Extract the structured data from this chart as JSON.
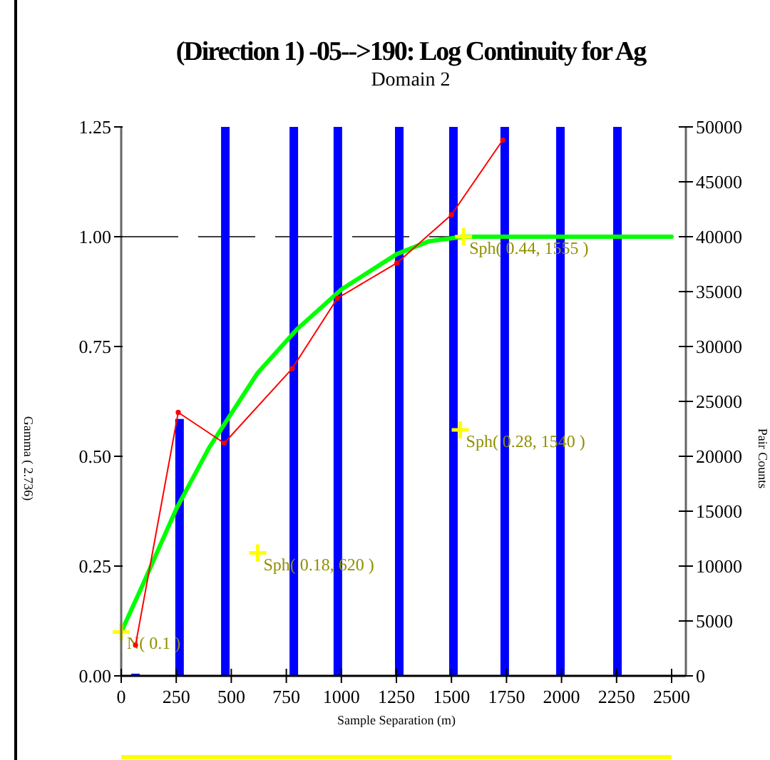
{
  "chart_data": {
    "type": "line",
    "title": "(Direction 1) -05-->190:  Log Continuity for Ag",
    "subtitle": "Domain 2",
    "xlabel": "Sample Separation (m)",
    "ylabel": "Gamma ( 2.736)",
    "y2label": "Pair Counts",
    "xlim": [
      0,
      2500
    ],
    "xticks": [
      0,
      250,
      500,
      750,
      1000,
      1250,
      1500,
      1750,
      2000,
      2250,
      2500
    ],
    "ylim": [
      0,
      1.25
    ],
    "yticks": [
      {
        "value": 0,
        "label": "0.00"
      },
      {
        "value": 0.25,
        "label": "0.25"
      },
      {
        "value": 0.5,
        "label": "0.50"
      },
      {
        "value": 0.75,
        "label": "0.75"
      },
      {
        "value": 1,
        "label": "1.00"
      },
      {
        "value": 1.25,
        "label": "1.25"
      }
    ],
    "y2lim": [
      0,
      50000
    ],
    "y2ticks": [
      0,
      5000,
      10000,
      15000,
      20000,
      25000,
      30000,
      35000,
      40000,
      45000,
      50000
    ],
    "grid": false,
    "ref_lines": [
      {
        "axis": "y",
        "value": 1,
        "color": "#404040",
        "line_style": "dashed"
      }
    ],
    "series": [
      {
        "type": "bar",
        "axis": "y2",
        "color": "#0000ff",
        "x": [
          65,
          265,
          473,
          784,
          984,
          1263,
          1509,
          1742,
          1995,
          2254
        ],
        "values": [
          200,
          23400,
          50000,
          50000,
          50000,
          50000,
          50000,
          50000,
          50000,
          50000
        ]
      },
      {
        "color": "#00ff00",
        "marker": "none",
        "x": [
          0,
          100,
          250,
          400,
          620,
          800,
          1000,
          1250,
          1400,
          1555,
          2500
        ],
        "values": [
          0.1,
          0.21,
          0.38,
          0.52,
          0.69,
          0.79,
          0.88,
          0.96,
          0.99,
          1.0,
          1.0
        ]
      },
      {
        "type": "line",
        "color": "#ff0000",
        "marker": "circle",
        "x": [
          65,
          259,
          468,
          777,
          982,
          1252,
          1500,
          1733
        ],
        "values": [
          0.07,
          0.6,
          0.53,
          0.7,
          0.86,
          0.94,
          1.05,
          1.22
        ]
      },
      {
        "type": "scatter",
        "color": "#ffff00",
        "marker": "cross",
        "x": [
          0,
          620,
          1540,
          1555
        ],
        "values": [
          0.1,
          0.28,
          0.56,
          1.0
        ],
        "value_labels": [
          "N( 0.1 )",
          "Sph( 0.18, 620 )",
          "Sph( 0.28, 1540 )",
          "Sph( 0.44, 1555 )"
        ]
      }
    ]
  }
}
